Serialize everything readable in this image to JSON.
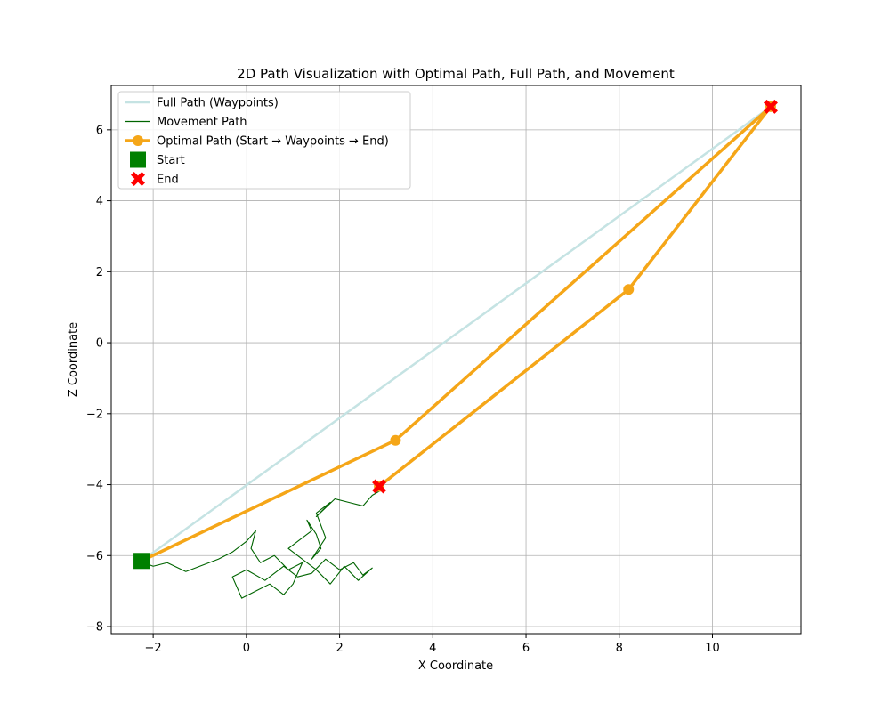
{
  "chart_data": {
    "type": "line",
    "title": "2D Path Visualization with Optimal Path, Full Path, and Movement",
    "xlabel": "X Coordinate",
    "ylabel": "Z Coordinate",
    "xlim": [
      -2.9,
      11.9
    ],
    "ylim": [
      -8.2,
      7.25
    ],
    "xticks": [
      -2,
      0,
      2,
      4,
      6,
      8,
      10
    ],
    "yticks": [
      -8,
      -6,
      -4,
      -2,
      0,
      2,
      4,
      6
    ],
    "grid": true,
    "legend_position": "top-left",
    "series": [
      {
        "name": "Full Path (Waypoints)",
        "kind": "line",
        "color": "#c5e3e3",
        "x": [
          -2.25,
          11.25
        ],
        "y": [
          -6.15,
          6.65
        ]
      },
      {
        "name": "Movement Path",
        "kind": "line",
        "color": "#006400",
        "x": [
          -2.3,
          -2.0,
          -1.7,
          -1.3,
          -1.0,
          -0.6,
          -0.3,
          0.0,
          0.2,
          0.1,
          0.3,
          0.6,
          0.9,
          1.2,
          1.0,
          0.8,
          0.5,
          0.2,
          -0.1,
          -0.3,
          0.0,
          0.4,
          0.8,
          1.1,
          1.4,
          1.7,
          2.0,
          2.3,
          2.5,
          2.7,
          2.4,
          2.1,
          1.8,
          1.5,
          1.2,
          0.9,
          1.1,
          1.4,
          1.3,
          1.5,
          1.6,
          1.4,
          1.7,
          1.5,
          1.8,
          1.5,
          1.9,
          2.2,
          2.5,
          2.7,
          2.9
        ],
        "y": [
          -6.15,
          -6.3,
          -6.2,
          -6.45,
          -6.3,
          -6.1,
          -5.9,
          -5.6,
          -5.3,
          -5.8,
          -6.2,
          -6.0,
          -6.4,
          -6.2,
          -6.8,
          -7.1,
          -6.8,
          -7.0,
          -7.2,
          -6.6,
          -6.4,
          -6.7,
          -6.3,
          -6.6,
          -6.5,
          -6.1,
          -6.4,
          -6.2,
          -6.55,
          -6.35,
          -6.7,
          -6.3,
          -6.8,
          -6.4,
          -6.1,
          -5.8,
          -5.6,
          -5.3,
          -5.0,
          -5.4,
          -5.8,
          -6.1,
          -5.5,
          -4.8,
          -4.5,
          -4.9,
          -4.4,
          -4.5,
          -4.6,
          -4.3,
          -4.15
        ]
      },
      {
        "name": "Optimal Path (Start → Waypoints → End)",
        "kind": "line-marker",
        "color": "#f5a618",
        "x": [
          -2.25,
          3.2,
          11.25,
          8.2,
          2.85
        ],
        "y": [
          -6.15,
          -2.75,
          6.65,
          1.5,
          -4.05
        ]
      },
      {
        "name": "Start",
        "kind": "square-marker",
        "color": "#008000",
        "x": [
          -2.25
        ],
        "y": [
          -6.15
        ]
      },
      {
        "name": "End",
        "kind": "x-marker",
        "color": "#ff0000",
        "x": [
          11.25,
          2.85
        ],
        "y": [
          6.65,
          -4.05
        ]
      }
    ]
  }
}
